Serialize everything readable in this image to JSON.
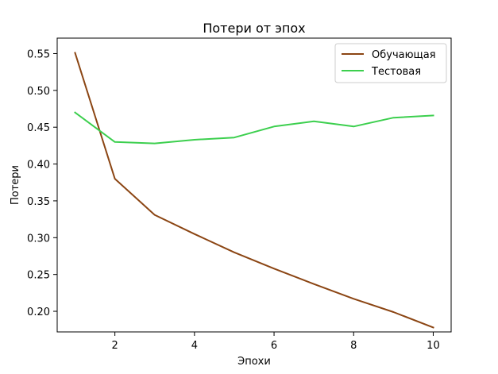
{
  "chart_data": {
    "type": "line",
    "title": "Потери от эпох",
    "xlabel": "Эпохи",
    "ylabel": "Потери",
    "xlim": [
      0.55,
      10.45
    ],
    "ylim": [
      0.172,
      0.571
    ],
    "xticks": [
      2,
      4,
      6,
      8,
      10
    ],
    "yticks": [
      0.2,
      0.25,
      0.3,
      0.35,
      0.4,
      0.45,
      0.5,
      0.55
    ],
    "ytick_labels": [
      "0.20",
      "0.25",
      "0.30",
      "0.35",
      "0.40",
      "0.45",
      "0.50",
      "0.55"
    ],
    "grid": false,
    "legend_position": "top-right",
    "x": [
      1,
      2,
      3,
      4,
      5,
      6,
      7,
      8,
      9,
      10
    ],
    "series": [
      {
        "name": "Обучающая",
        "color": "#8b4513",
        "values": [
          0.551,
          0.38,
          0.331,
          0.305,
          0.28,
          0.258,
          0.237,
          0.217,
          0.199,
          0.178
        ]
      },
      {
        "name": "Тестовая",
        "color": "#3ccf4e",
        "values": [
          0.47,
          0.43,
          0.428,
          0.433,
          0.436,
          0.451,
          0.458,
          0.451,
          0.463,
          0.466
        ]
      }
    ]
  }
}
